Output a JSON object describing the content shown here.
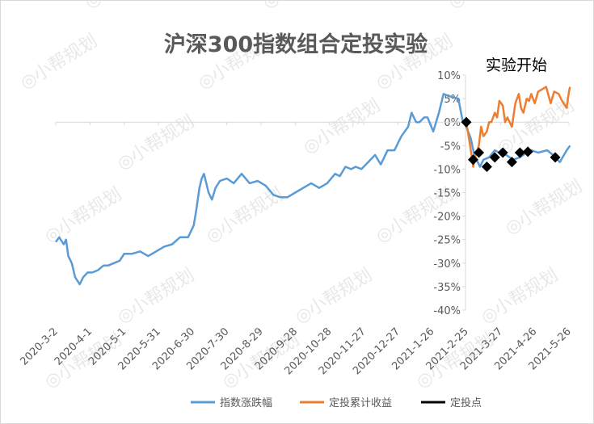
{
  "chart_data": {
    "type": "line",
    "title": "沪深300指数组合定投实验",
    "annotation": "实验开始",
    "watermark": "小帮规划",
    "ylim": [
      -0.4,
      0.1
    ],
    "y_ticks": [
      0.1,
      0.05,
      0.0,
      -0.05,
      -0.1,
      -0.15,
      -0.2,
      -0.25,
      -0.3,
      -0.35,
      -0.4
    ],
    "y_tick_labels": [
      "10%",
      "5%",
      "0%",
      "-5%",
      "-10%",
      "-15%",
      "-20%",
      "-25%",
      "-30%",
      "-35%",
      "-40%"
    ],
    "x_ticks": [
      "2020-3-2",
      "2020-4-1",
      "2020-5-1",
      "2020-5-31",
      "2020-6-30",
      "2020-7-30",
      "2020-8-29",
      "2020-9-28",
      "2020-10-28",
      "2020-11-27",
      "2020-12-27",
      "2021-1-26",
      "2021-2-25",
      "2021-3-27",
      "2021-4-26",
      "2021-5-26"
    ],
    "legend_position": "bottom",
    "grid": false,
    "colors": {
      "index": "#5b9bd5",
      "cumulative": "#ed7d31",
      "points": "#000000"
    },
    "series": [
      {
        "name": "指数涨跌幅",
        "dates": [
          "2020-3-2",
          "2020-3-5",
          "2020-3-9",
          "2020-3-11",
          "2020-3-13",
          "2020-3-16",
          "2020-3-19",
          "2020-3-23",
          "2020-3-26",
          "2020-3-30",
          "2020-4-3",
          "2020-4-8",
          "2020-4-13",
          "2020-4-17",
          "2020-4-22",
          "2020-4-27",
          "2020-5-1",
          "2020-5-8",
          "2020-5-15",
          "2020-5-22",
          "2020-5-29",
          "2020-6-5",
          "2020-6-12",
          "2020-6-19",
          "2020-6-26",
          "2020-7-1",
          "2020-7-3",
          "2020-7-6",
          "2020-7-8",
          "2020-7-10",
          "2020-7-14",
          "2020-7-17",
          "2020-7-20",
          "2020-7-24",
          "2020-7-30",
          "2020-8-5",
          "2020-8-12",
          "2020-8-19",
          "2020-8-26",
          "2020-9-2",
          "2020-9-9",
          "2020-9-15",
          "2020-9-21",
          "2020-9-28",
          "2020-10-12",
          "2020-10-19",
          "2020-10-26",
          "2020-11-2",
          "2020-11-6",
          "2020-11-11",
          "2020-11-16",
          "2020-11-20",
          "2020-11-25",
          "2020-12-1",
          "2020-12-7",
          "2020-12-12",
          "2020-12-18",
          "2020-12-24",
          "2020-12-30",
          "2021-1-5",
          "2021-1-8",
          "2021-1-12",
          "2021-1-15",
          "2021-1-19",
          "2021-1-22",
          "2021-1-27",
          "2021-2-1",
          "2021-2-5",
          "2021-2-10",
          "2021-2-18",
          "2021-2-22",
          "2021-2-25",
          "2021-3-1",
          "2021-3-4",
          "2021-3-9",
          "2021-3-12",
          "2021-3-17",
          "2021-3-22",
          "2021-3-26",
          "2021-4-1",
          "2021-4-7",
          "2021-4-13",
          "2021-4-19",
          "2021-4-23",
          "2021-4-29",
          "2021-5-7",
          "2021-5-12",
          "2021-5-18",
          "2021-5-24",
          "2021-5-27"
        ],
        "values": [
          -0.255,
          -0.245,
          -0.26,
          -0.25,
          -0.285,
          -0.3,
          -0.33,
          -0.345,
          -0.33,
          -0.32,
          -0.32,
          -0.315,
          -0.305,
          -0.305,
          -0.3,
          -0.295,
          -0.28,
          -0.28,
          -0.275,
          -0.285,
          -0.275,
          -0.265,
          -0.26,
          -0.245,
          -0.245,
          -0.22,
          -0.19,
          -0.14,
          -0.12,
          -0.11,
          -0.15,
          -0.165,
          -0.14,
          -0.125,
          -0.12,
          -0.13,
          -0.11,
          -0.13,
          -0.125,
          -0.135,
          -0.155,
          -0.16,
          -0.16,
          -0.15,
          -0.13,
          -0.14,
          -0.13,
          -0.11,
          -0.115,
          -0.095,
          -0.1,
          -0.095,
          -0.1,
          -0.085,
          -0.07,
          -0.09,
          -0.06,
          -0.06,
          -0.03,
          -0.01,
          0.02,
          0.0,
          0.0,
          0.01,
          0.01,
          -0.02,
          0.02,
          0.06,
          0.055,
          0.05,
          0.0,
          -0.01,
          -0.035,
          -0.07,
          -0.095,
          -0.08,
          -0.075,
          -0.06,
          -0.065,
          -0.07,
          -0.08,
          -0.075,
          -0.065,
          -0.06,
          -0.065,
          -0.06,
          -0.07,
          -0.085,
          -0.06,
          -0.05
        ]
      },
      {
        "name": "定投累计收益",
        "dates": [
          "2021-2-25",
          "2021-2-27",
          "2021-3-1",
          "2021-3-3",
          "2021-3-5",
          "2021-3-8",
          "2021-3-10",
          "2021-3-12",
          "2021-3-15",
          "2021-3-17",
          "2021-3-19",
          "2021-3-22",
          "2021-3-24",
          "2021-3-26",
          "2021-3-29",
          "2021-3-31",
          "2021-4-2",
          "2021-4-6",
          "2021-4-9",
          "2021-4-12",
          "2021-4-14",
          "2021-4-16",
          "2021-4-19",
          "2021-4-21",
          "2021-4-23",
          "2021-4-26",
          "2021-4-29",
          "2021-5-6",
          "2021-5-10",
          "2021-5-13",
          "2021-5-17",
          "2021-5-20",
          "2021-5-24",
          "2021-5-26",
          "2021-5-27"
        ],
        "values": [
          0.0,
          -0.03,
          -0.06,
          -0.095,
          -0.07,
          -0.05,
          -0.01,
          -0.03,
          -0.02,
          0.0,
          0.0,
          0.02,
          0.01,
          0.045,
          0.035,
          0.0,
          0.01,
          -0.01,
          0.04,
          0.06,
          0.03,
          0.02,
          0.05,
          0.045,
          0.06,
          0.04,
          0.065,
          0.075,
          0.04,
          0.065,
          0.06,
          0.045,
          0.03,
          0.065,
          0.075
        ]
      },
      {
        "name": "定投点",
        "dates": [
          "2021-2-25",
          "2021-3-3",
          "2021-3-8",
          "2021-3-15",
          "2021-3-22",
          "2021-3-29",
          "2021-4-6",
          "2021-4-13",
          "2021-4-20",
          "2021-5-14"
        ],
        "values": [
          0.0,
          -0.08,
          -0.065,
          -0.095,
          -0.075,
          -0.065,
          -0.085,
          -0.065,
          -0.063,
          -0.075
        ]
      }
    ]
  }
}
